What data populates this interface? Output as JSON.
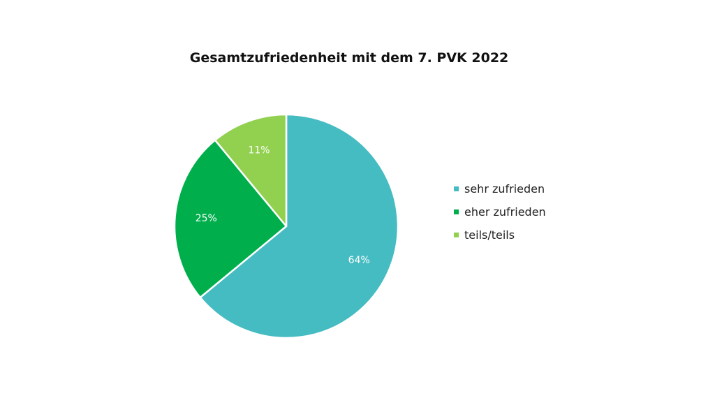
{
  "chart_data": {
    "type": "pie",
    "title": "Gesamtzufriedenheit mit dem 7. PVK 2022",
    "slices": [
      {
        "name": "sehr zufrieden",
        "value": 64,
        "label": "64%",
        "color": "#45BCC2"
      },
      {
        "name": "eher zufrieden",
        "value": 25,
        "label": "25%",
        "color": "#00AF4C"
      },
      {
        "name": "teils/teils",
        "value": 11,
        "label": "11%",
        "color": "#92D050"
      }
    ],
    "legend_position": "right"
  }
}
